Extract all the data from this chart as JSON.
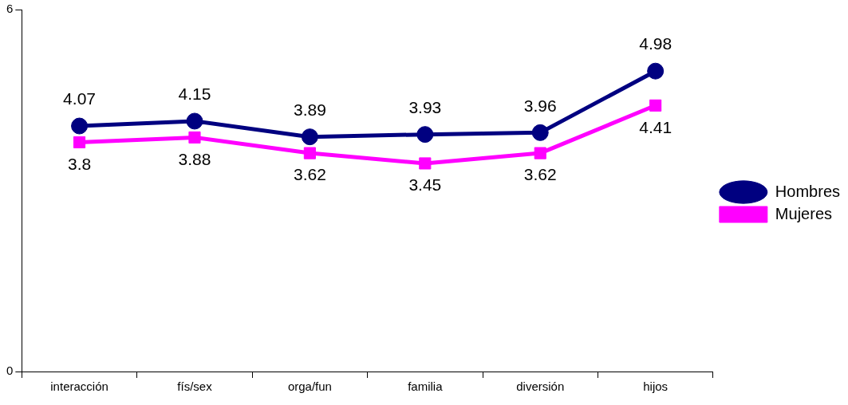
{
  "chart_data": {
    "type": "line",
    "categories": [
      "interacción",
      "fís/sex",
      "orga/fun",
      "familia",
      "diversión",
      "hijos"
    ],
    "series": [
      {
        "name": "Hombres",
        "color": "#000080",
        "marker": "circle",
        "values": [
          4.07,
          4.15,
          3.89,
          3.93,
          3.96,
          4.98
        ]
      },
      {
        "name": "Mujeres",
        "color": "#ff00ff",
        "marker": "square",
        "values": [
          3.8,
          3.88,
          3.62,
          3.45,
          3.62,
          4.41
        ]
      }
    ],
    "ylim": [
      0,
      6
    ],
    "yticks": [
      0,
      6
    ],
    "grid": false,
    "legend": "right",
    "data_labels": true,
    "line_style": "solid"
  }
}
